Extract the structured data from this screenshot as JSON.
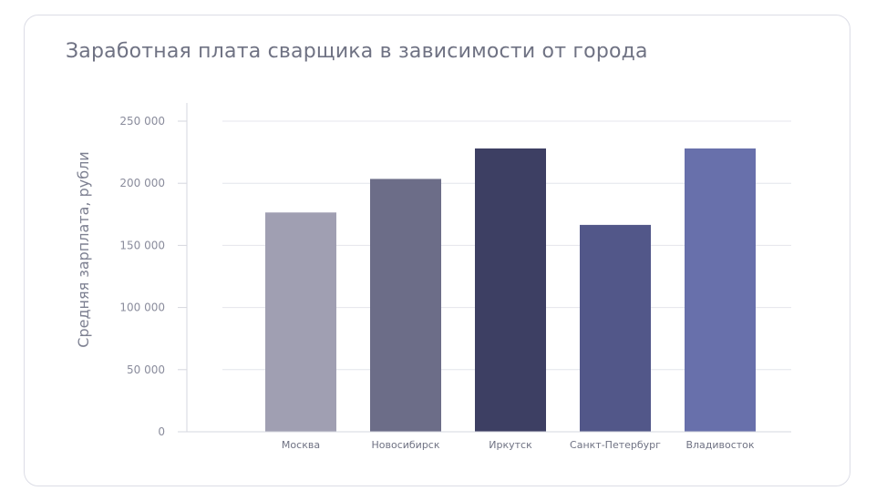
{
  "chart_data": {
    "type": "bar",
    "title": "Заработная плата сварщика в зависимости от города",
    "ylabel": "Средняя зарплата, рубли",
    "xlabel": "",
    "categories": [
      "Москва",
      "Новосибирск",
      "Иркутск",
      "Санкт-Петербург",
      "Владивосток"
    ],
    "values": [
      176500,
      203500,
      228000,
      166500,
      228000
    ],
    "ylim": [
      0,
      250000
    ],
    "yticks": [
      0,
      50000,
      100000,
      150000,
      200000,
      250000
    ],
    "ytick_labels": [
      "0",
      "50 000",
      "100 000",
      "150 000",
      "200 000",
      "250 000"
    ],
    "bar_colors": [
      "#a09fb2",
      "#6c6d88",
      "#3d3f63",
      "#525789",
      "#6870ab"
    ],
    "grid": true,
    "legend": "none"
  }
}
